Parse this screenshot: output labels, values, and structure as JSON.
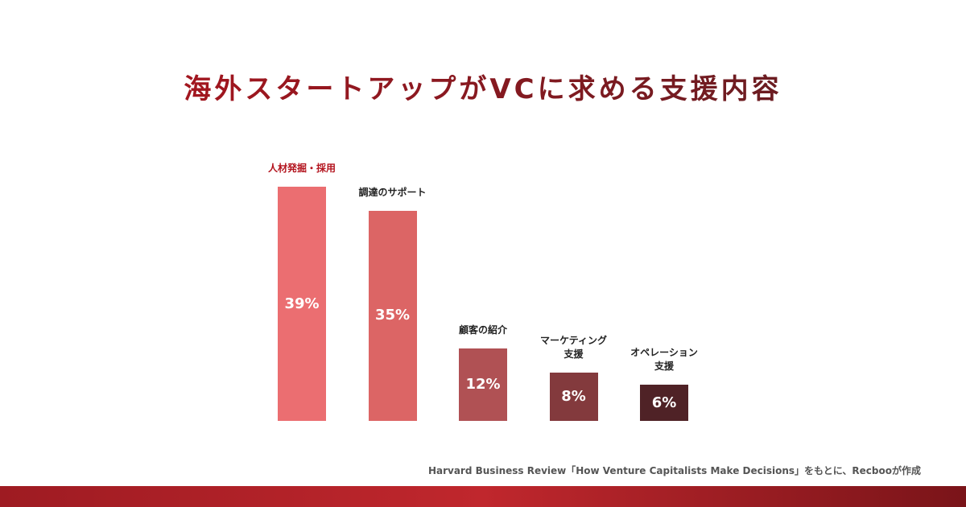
{
  "colors": {
    "title_start": "#B3141E",
    "title_end": "#5A1E22",
    "band_start": "#9E1B22",
    "band_mid": "#C0272D",
    "band_end": "#7A1419"
  },
  "chart_data": {
    "type": "bar",
    "title": "海外スタートアップがVCに求める支援内容",
    "categories": [
      "人材発掘・採用",
      "調達のサポート",
      "顧客の紹介",
      "マーケティング\n支援",
      "オペレーション\n支援"
    ],
    "values": [
      39,
      35,
      12,
      8,
      6
    ],
    "value_labels": [
      "39%",
      "35%",
      "12%",
      "8%",
      "6%"
    ],
    "unit": "%",
    "bar_colors": [
      "#EB6E71",
      "#DC6565",
      "#B05154",
      "#833A3D",
      "#4F2226"
    ],
    "label_colors": [
      "#B3141E",
      "#222222",
      "#222222",
      "#222222",
      "#222222"
    ],
    "grid": false,
    "xlabel": "",
    "ylabel": ""
  },
  "source": "Harvard Business Review「How Venture Capitalists Make Decisions」をもとに、Recbooが作成"
}
